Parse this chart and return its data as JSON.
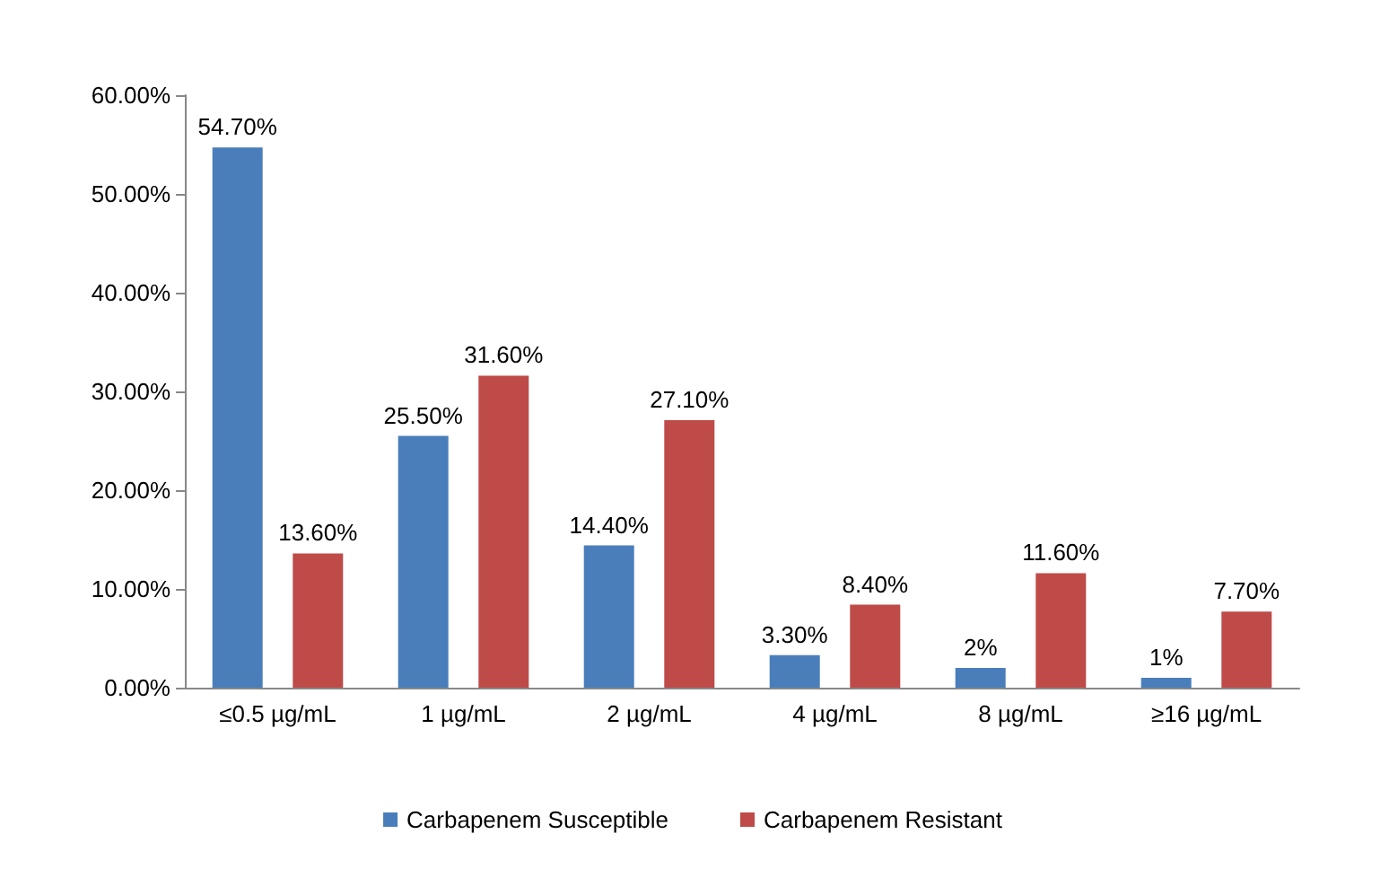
{
  "chart_data": {
    "type": "bar",
    "categories": [
      "≤0.5 µg/mL",
      "1 µg/mL",
      "2 µg/mL",
      "4 µg/mL",
      "8 µg/mL",
      "≥16 µg/mL"
    ],
    "series": [
      {
        "name": "Carbapenem Susceptible",
        "color": "#4a7ebb",
        "values": [
          54.7,
          25.5,
          14.4,
          3.3,
          2,
          1
        ],
        "value_labels": [
          "54.70%",
          "25.50%",
          "14.40%",
          "3.30%",
          "2%",
          "1%"
        ]
      },
      {
        "name": "Carbapenem Resistant",
        "color": "#be4b48",
        "values": [
          13.6,
          31.6,
          27.1,
          8.4,
          11.6,
          7.7
        ],
        "value_labels": [
          "13.60%",
          "31.60%",
          "27.10%",
          "8.40%",
          "11.60%",
          "7.70%"
        ]
      }
    ],
    "ylim": [
      0,
      60
    ],
    "yticks": [
      {
        "value": 0,
        "label": "0.00%"
      },
      {
        "value": 10,
        "label": "10.00%"
      },
      {
        "value": 20,
        "label": "20.00%"
      },
      {
        "value": 30,
        "label": "30.00%"
      },
      {
        "value": 40,
        "label": "40.00%"
      },
      {
        "value": 50,
        "label": "50.00%"
      },
      {
        "value": 60,
        "label": "60.00%"
      }
    ],
    "grid": false,
    "legend": "bottom"
  }
}
